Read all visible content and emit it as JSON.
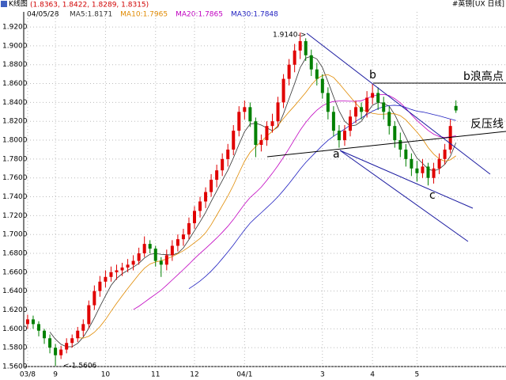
{
  "chart_data": {
    "type": "candlestick",
    "title": "K线图",
    "quote": "(1.8363, 1.8422, 1.8289, 1.8315)",
    "symbol": "#英镑[UX 日线]",
    "date": "04/05/28",
    "ma": [
      {
        "label": "MA5:1.8171",
        "color": "#333333",
        "period": 5
      },
      {
        "label": "MA10:1.7965",
        "color": "#e08a00",
        "period": 10
      },
      {
        "label": "MA20:1.7865",
        "color": "#c000c0",
        "period": 20
      },
      {
        "label": "MA30:1.7848",
        "color": "#2020c0",
        "period": 30
      }
    ],
    "up_color": "#e00000",
    "down_color": "#008000",
    "annotations": {
      "high": "1.9140->",
      "low": "<-1.5606",
      "b": "b",
      "b_high": "b浪高点",
      "resistance": "反压线",
      "a": "a",
      "c": "c"
    },
    "xlim": [
      -0.7,
      86
    ],
    "xticks": [
      {
        "value": 0,
        "label": "03/8"
      },
      {
        "value": 5,
        "label": "9"
      },
      {
        "value": 14,
        "label": "10"
      },
      {
        "value": 23,
        "label": "11"
      },
      {
        "value": 30,
        "label": "12"
      },
      {
        "value": 39,
        "label": "04/1"
      },
      {
        "value": 53,
        "label": "3"
      },
      {
        "value": 62,
        "label": "4"
      },
      {
        "value": 70,
        "label": "5"
      }
    ],
    "ylim": [
      1.56,
      1.936
    ],
    "yticks": [
      {
        "value": 1.56,
        "label": "1.5600"
      },
      {
        "value": 1.58,
        "label": "1.5800"
      },
      {
        "value": 1.6,
        "label": "1.6000"
      },
      {
        "value": 1.62,
        "label": "1.6200"
      },
      {
        "value": 1.64,
        "label": "1.6400"
      },
      {
        "value": 1.66,
        "label": "1.6600"
      },
      {
        "value": 1.68,
        "label": "1.6800"
      },
      {
        "value": 1.7,
        "label": "1.7000"
      },
      {
        "value": 1.72,
        "label": "1.7200"
      },
      {
        "value": 1.74,
        "label": "1.7400"
      },
      {
        "value": 1.76,
        "label": "1.7600"
      },
      {
        "value": 1.78,
        "label": "1.7800"
      },
      {
        "value": 1.8,
        "label": "1.8000"
      },
      {
        "value": 1.82,
        "label": "1.8200"
      },
      {
        "value": 1.84,
        "label": "1.8400"
      },
      {
        "value": 1.86,
        "label": "1.8600"
      },
      {
        "value": 1.88,
        "label": "1.8800"
      },
      {
        "value": 1.9,
        "label": "1.9000"
      },
      {
        "value": 1.92,
        "label": "1.9200"
      }
    ],
    "grid": true,
    "candles": [
      [
        1.605,
        1.615,
        1.6,
        1.61
      ],
      [
        1.61,
        1.614,
        1.6,
        1.605
      ],
      [
        1.605,
        1.608,
        1.592,
        1.598
      ],
      [
        1.598,
        1.6,
        1.584,
        1.59
      ],
      [
        1.59,
        1.594,
        1.574,
        1.58
      ],
      [
        1.58,
        1.584,
        1.5606,
        1.572
      ],
      [
        1.572,
        1.582,
        1.568,
        1.578
      ],
      [
        1.578,
        1.59,
        1.574,
        1.585
      ],
      [
        1.585,
        1.594,
        1.58,
        1.59
      ],
      [
        1.59,
        1.602,
        1.586,
        1.598
      ],
      [
        1.598,
        1.61,
        1.592,
        1.605
      ],
      [
        1.605,
        1.63,
        1.6,
        1.625
      ],
      [
        1.625,
        1.646,
        1.62,
        1.64
      ],
      [
        1.64,
        1.656,
        1.634,
        1.65
      ],
      [
        1.65,
        1.662,
        1.644,
        1.655
      ],
      [
        1.655,
        1.666,
        1.65,
        1.66
      ],
      [
        1.66,
        1.668,
        1.652,
        1.662
      ],
      [
        1.662,
        1.67,
        1.656,
        1.665
      ],
      [
        1.665,
        1.674,
        1.66,
        1.668
      ],
      [
        1.668,
        1.678,
        1.662,
        1.672
      ],
      [
        1.672,
        1.686,
        1.668,
        1.68
      ],
      [
        1.68,
        1.698,
        1.676,
        1.69
      ],
      [
        1.69,
        1.694,
        1.68,
        1.685
      ],
      [
        1.685,
        1.688,
        1.666,
        1.672
      ],
      [
        1.672,
        1.676,
        1.655,
        1.668
      ],
      [
        1.668,
        1.684,
        1.662,
        1.678
      ],
      [
        1.678,
        1.694,
        1.672,
        1.688
      ],
      [
        1.688,
        1.7,
        1.682,
        1.695
      ],
      [
        1.695,
        1.706,
        1.688,
        1.7
      ],
      [
        1.7,
        1.718,
        1.695,
        1.712
      ],
      [
        1.712,
        1.73,
        1.706,
        1.725
      ],
      [
        1.725,
        1.74,
        1.718,
        1.735
      ],
      [
        1.735,
        1.75,
        1.728,
        1.745
      ],
      [
        1.745,
        1.764,
        1.74,
        1.758
      ],
      [
        1.758,
        1.774,
        1.75,
        1.768
      ],
      [
        1.768,
        1.786,
        1.762,
        1.78
      ],
      [
        1.78,
        1.796,
        1.772,
        1.79
      ],
      [
        1.79,
        1.816,
        1.784,
        1.81
      ],
      [
        1.81,
        1.836,
        1.804,
        1.83
      ],
      [
        1.83,
        1.842,
        1.822,
        1.835
      ],
      [
        1.835,
        1.84,
        1.814,
        1.82
      ],
      [
        1.82,
        1.824,
        1.782,
        1.795
      ],
      [
        1.795,
        1.806,
        1.788,
        1.8
      ],
      [
        1.8,
        1.82,
        1.794,
        1.815
      ],
      [
        1.815,
        1.828,
        1.808,
        1.82
      ],
      [
        1.82,
        1.846,
        1.814,
        1.84
      ],
      [
        1.84,
        1.87,
        1.834,
        1.865
      ],
      [
        1.865,
        1.886,
        1.858,
        1.88
      ],
      [
        1.88,
        1.902,
        1.872,
        1.895
      ],
      [
        1.895,
        1.914,
        1.886,
        1.905
      ],
      [
        1.905,
        1.908,
        1.884,
        1.89
      ],
      [
        1.89,
        1.896,
        1.868,
        1.875
      ],
      [
        1.875,
        1.882,
        1.858,
        1.865
      ],
      [
        1.865,
        1.87,
        1.844,
        1.85
      ],
      [
        1.85,
        1.856,
        1.822,
        1.83
      ],
      [
        1.83,
        1.836,
        1.804,
        1.81
      ],
      [
        1.81,
        1.816,
        1.792,
        1.8
      ],
      [
        1.8,
        1.816,
        1.794,
        1.81
      ],
      [
        1.81,
        1.832,
        1.804,
        1.825
      ],
      [
        1.825,
        1.842,
        1.818,
        1.835
      ],
      [
        1.835,
        1.84,
        1.822,
        1.83
      ],
      [
        1.83,
        1.852,
        1.824,
        1.845
      ],
      [
        1.845,
        1.86,
        1.838,
        1.85
      ],
      [
        1.85,
        1.856,
        1.832,
        1.84
      ],
      [
        1.84,
        1.846,
        1.822,
        1.83
      ],
      [
        1.83,
        1.836,
        1.806,
        1.815
      ],
      [
        1.815,
        1.82,
        1.792,
        1.8
      ],
      [
        1.8,
        1.808,
        1.782,
        1.79
      ],
      [
        1.79,
        1.796,
        1.772,
        1.78
      ],
      [
        1.78,
        1.786,
        1.762,
        1.77
      ],
      [
        1.77,
        1.778,
        1.756,
        1.765
      ],
      [
        1.765,
        1.78,
        1.76,
        1.772
      ],
      [
        1.772,
        1.776,
        1.752,
        1.76
      ],
      [
        1.76,
        1.776,
        1.754,
        1.77
      ],
      [
        1.77,
        1.786,
        1.764,
        1.78
      ],
      [
        1.78,
        1.796,
        1.774,
        1.79
      ],
      [
        1.79,
        1.822,
        1.786,
        1.815
      ],
      [
        1.8363,
        1.8422,
        1.8289,
        1.8315
      ]
    ]
  }
}
